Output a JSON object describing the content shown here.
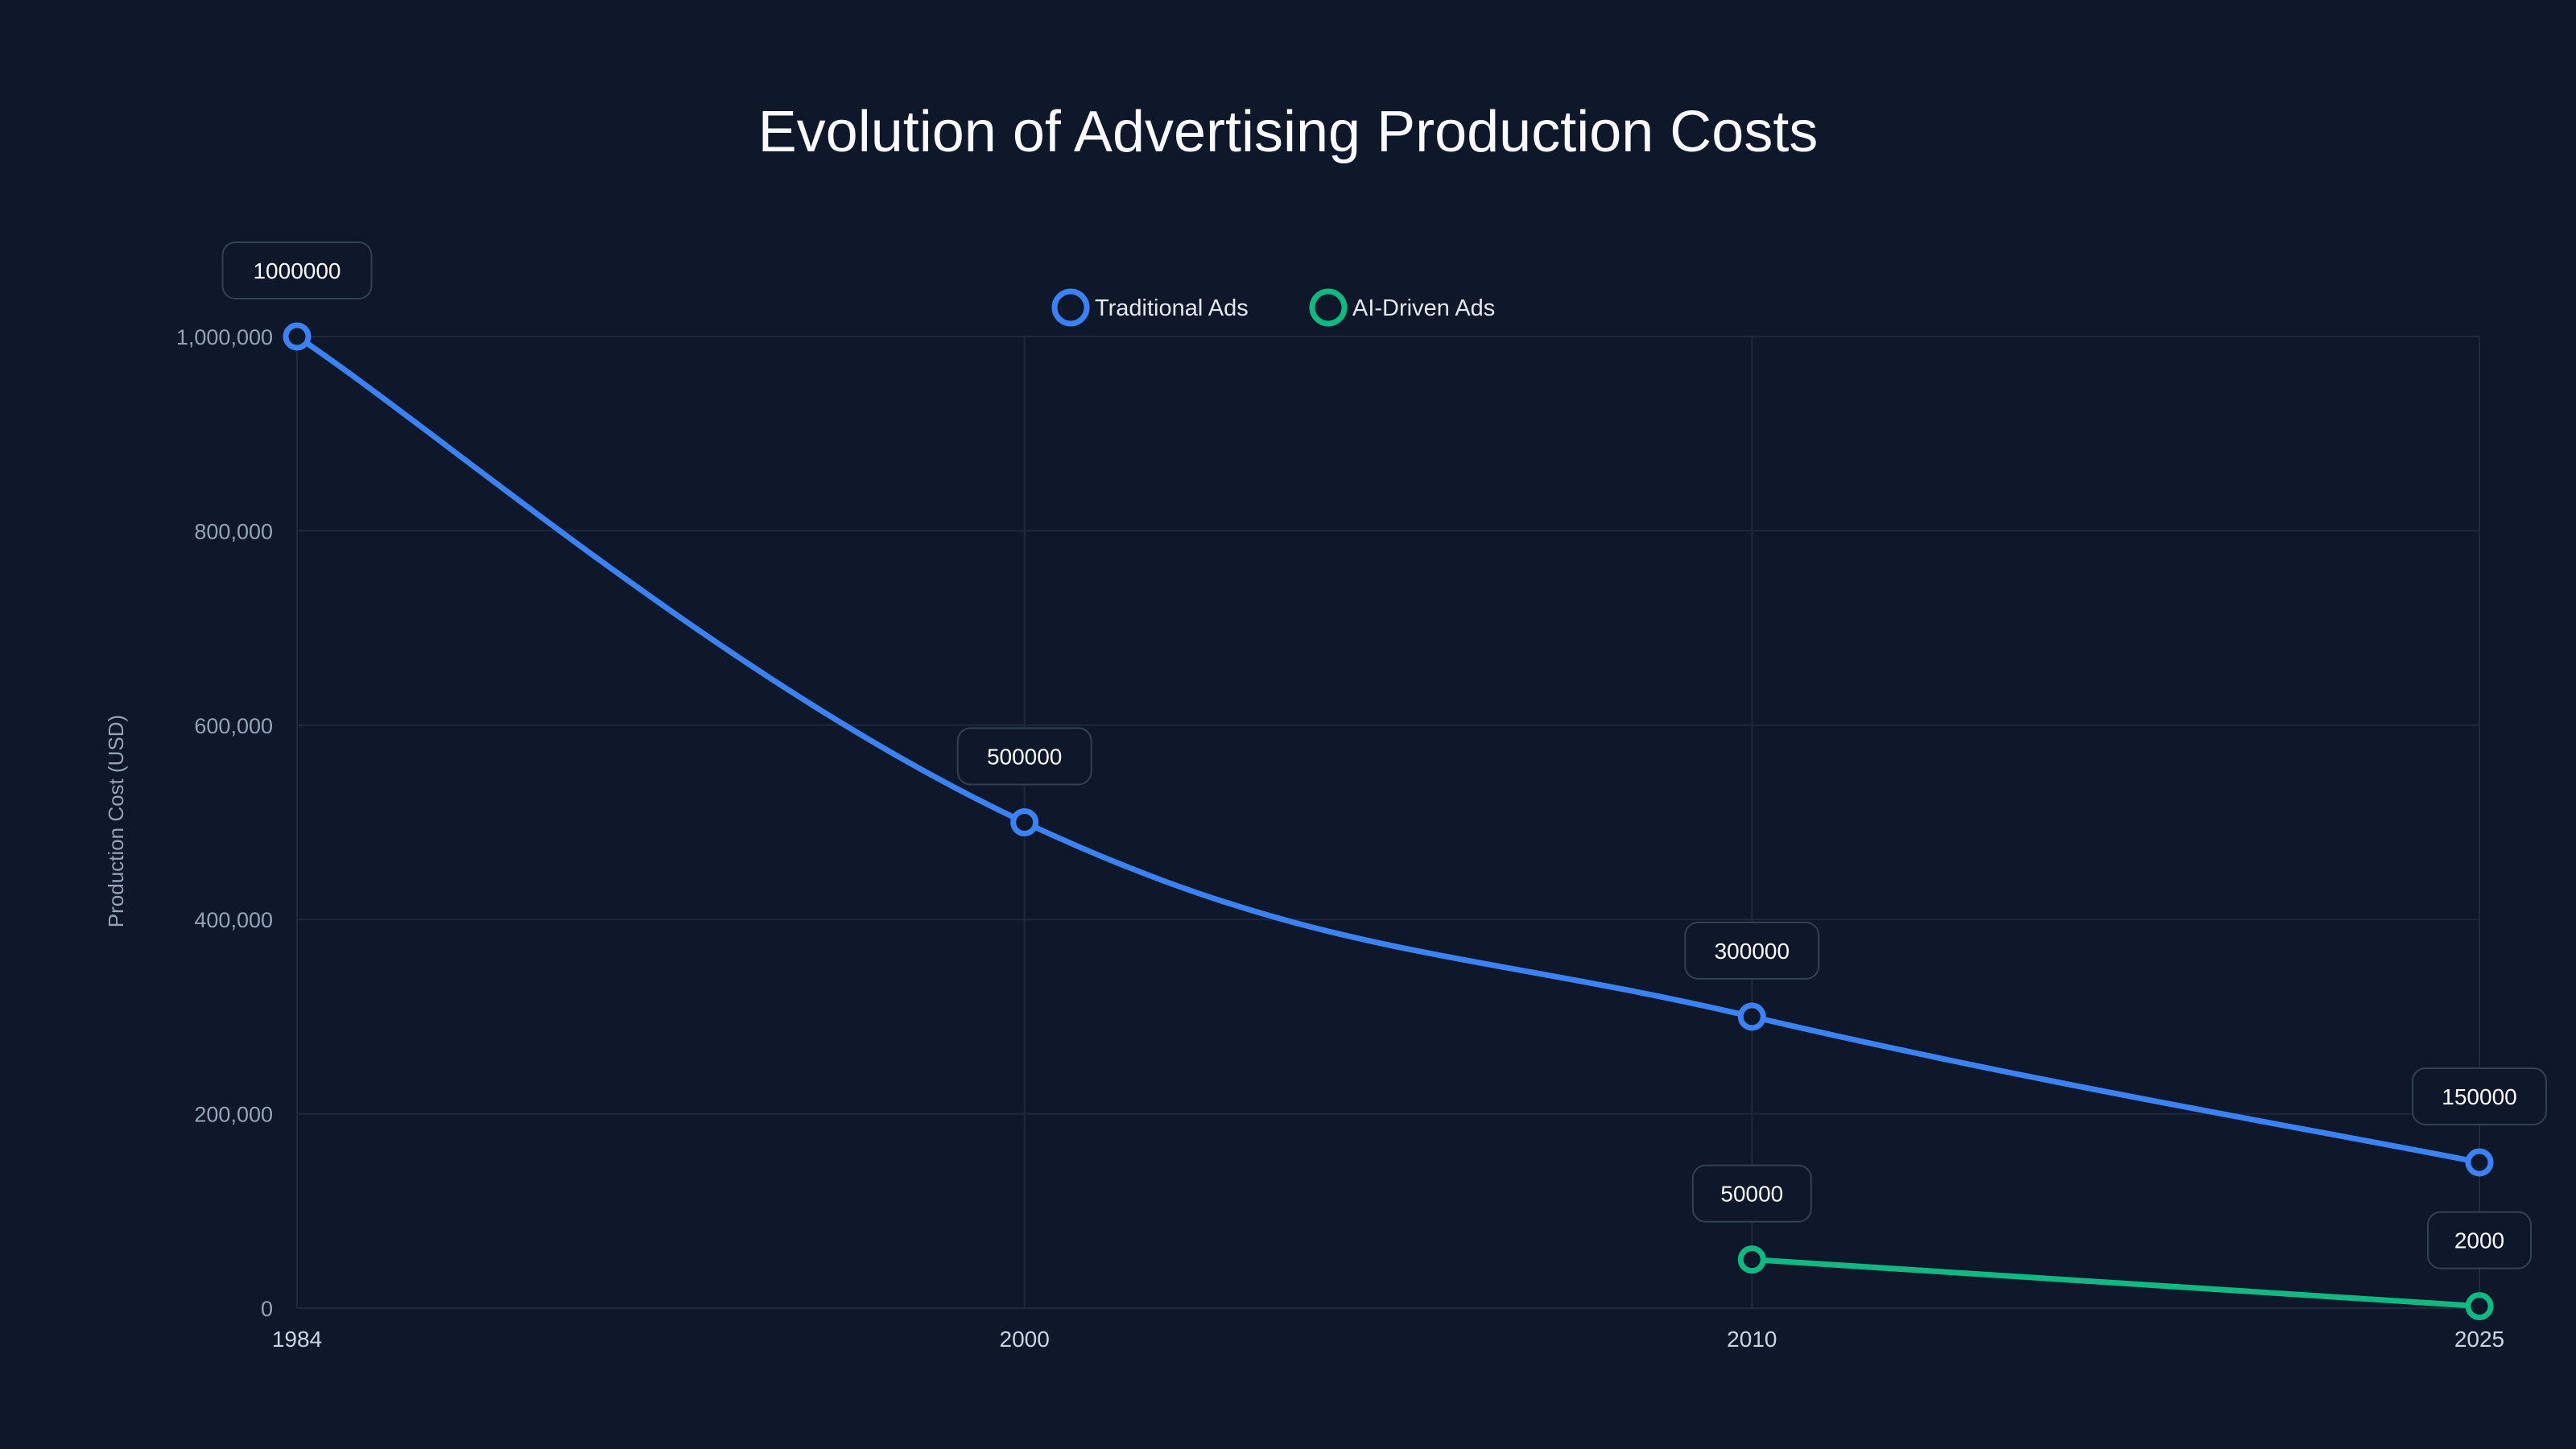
{
  "chart_data": {
    "type": "line",
    "title": "Evolution of Advertising Production Costs",
    "xlabel": "",
    "ylabel": "Production Cost (USD)",
    "categories": [
      "1984",
      "2000",
      "2010",
      "2025"
    ],
    "ylim": [
      0,
      1000000
    ],
    "yticks": [
      0,
      200000,
      400000,
      600000,
      800000,
      1000000
    ],
    "ytick_labels": [
      "0",
      "200,000",
      "400,000",
      "600,000",
      "800,000",
      "1,000,000"
    ],
    "grid": true,
    "legend_position": "top-center",
    "series": [
      {
        "name": "Traditional Ads",
        "color": "#3b82f6",
        "values": [
          1000000,
          500000,
          300000,
          150000
        ],
        "labels": [
          "1000000",
          "500000",
          "300000",
          "150000"
        ]
      },
      {
        "name": "AI-Driven Ads",
        "color": "#10b981",
        "values": [
          null,
          null,
          50000,
          2000
        ],
        "labels": [
          null,
          null,
          "50000",
          "2000"
        ]
      }
    ]
  }
}
